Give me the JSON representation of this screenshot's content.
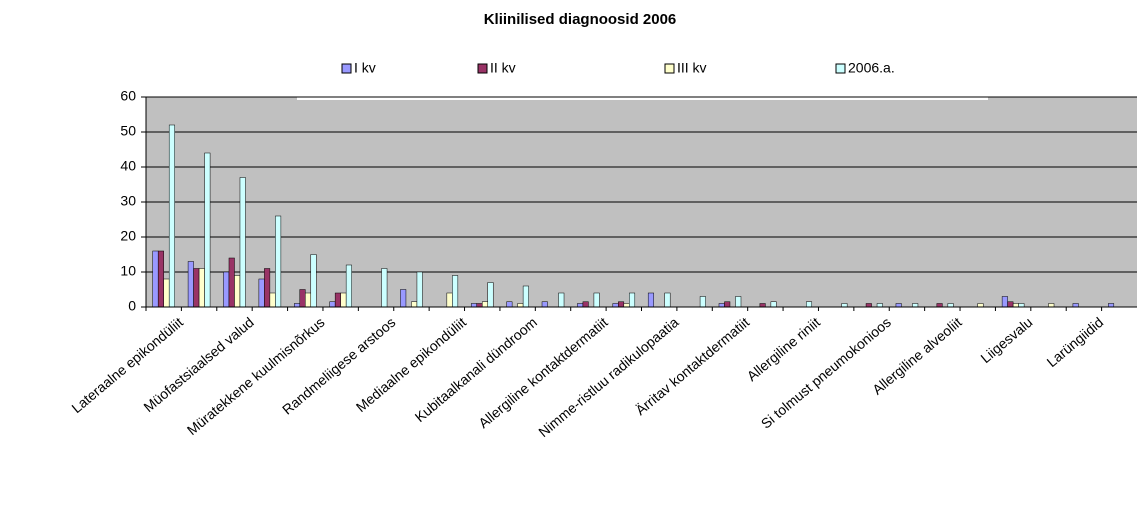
{
  "chart_data": {
    "type": "bar",
    "title": "Kliinilised diagnoosid 2006",
    "categories": [
      "Lateraalne epikondüliit",
      null,
      "Müofastsiaalsed valud",
      null,
      "Müratekkene kuulmisnõrkus",
      null,
      "Randmeliigese arstoos",
      null,
      "Mediaalne epikondüliit",
      null,
      "Kubitaalkanali dündroom",
      null,
      "Allergiline kontaktdermatiit",
      null,
      "Nimme-ristluu radikulopaatia",
      null,
      "Ärritav kontaktdermatiit",
      null,
      "Allergiline riniit",
      null,
      "Si tolmust pneumokonioos",
      null,
      "Allergiline alveoliit",
      null,
      "Liigesvalu",
      null,
      "Larüngiidid",
      null
    ],
    "series": [
      {
        "name": "I kv",
        "color": "#9999ff",
        "values": [
          16,
          13,
          10,
          8,
          1,
          1.5,
          0,
          5,
          0,
          1,
          1.5,
          1.5,
          1,
          1,
          4,
          0,
          1,
          0,
          0,
          0,
          0,
          1,
          0,
          0,
          3,
          0,
          1,
          1
        ]
      },
      {
        "name": "II kv",
        "color": "#993366",
        "values": [
          16,
          11,
          14,
          11,
          5,
          4,
          0,
          0,
          0,
          1,
          0,
          0,
          1.5,
          1.5,
          0,
          0,
          1.5,
          1,
          0,
          0,
          1,
          0,
          1,
          0,
          1.5,
          0,
          0,
          0
        ]
      },
      {
        "name": "III kv",
        "color": "#ffffcc",
        "values": [
          8,
          11,
          9,
          4,
          4,
          4,
          0,
          1.5,
          4,
          1.5,
          1,
          0,
          0,
          1,
          0,
          0,
          0,
          0,
          0,
          0,
          0,
          0,
          0,
          1,
          1,
          1,
          0,
          0
        ]
      },
      {
        "name": "2006.a.",
        "color": "#ccffff",
        "values": [
          52,
          44,
          37,
          26,
          15,
          12,
          11,
          10,
          9,
          7,
          6,
          4,
          4,
          4,
          4,
          3,
          3,
          1.5,
          1.5,
          1,
          1,
          1,
          1,
          0,
          1,
          0,
          0,
          0
        ]
      }
    ],
    "ylim": [
      0,
      60
    ],
    "yticks": [
      0,
      10,
      20,
      30,
      40,
      50,
      60
    ],
    "grid": true,
    "legend": "top"
  }
}
